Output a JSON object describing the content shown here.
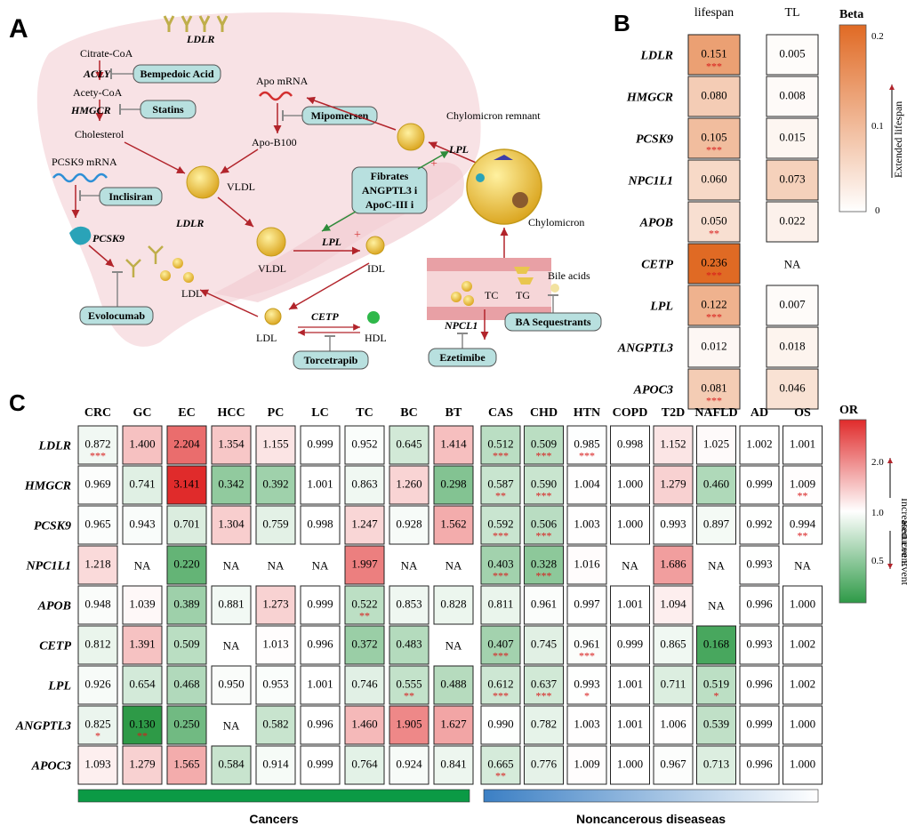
{
  "panel_a": {
    "label": "A",
    "nodes": {
      "ldlr_top": "LDLR",
      "citrate": "Citrate-CoA",
      "acly": "ACLY",
      "bempedoic": "Bempedoic Acid",
      "acety": "Acety-CoA",
      "hmgcr": "HMGCR",
      "statins": "Statins",
      "cholesterol": "Cholesterol",
      "pcsk9_mrna": "PCSK9 mRNA",
      "inclisiran": "Inclisiran",
      "ldlr_mid": "LDLR",
      "pcsk9": "PCSK9",
      "evolocumab": "Evolocumab",
      "ldl_liver": "LDL",
      "apo_mrna": "Apo mRNA",
      "mipomersen": "Mipomersen",
      "apob100": "Apo-B100",
      "vldl_liver": "VLDL",
      "vldl": "VLDL",
      "lpl1": "LPL",
      "idl": "IDL",
      "fibrates1": "Fibrates",
      "fibrates2": "ANGPTL3 i",
      "fibrates3": "ApoC-III i",
      "chylo_remnant": "Chylomicron remnant",
      "lpl2": "LPL",
      "chylomicron": "Chylomicron",
      "ldl": "LDL",
      "cetp": "CETP",
      "hdl": "HDL",
      "torcetrapib": "Torcetrapib",
      "tc": "TC",
      "tg": "TG",
      "bile_acids": "Bile acids",
      "npcl1": "NPCL1",
      "ezetimibe": "Ezetimibe",
      "ba_seq": "BA Sequestrants",
      "plus": "+"
    }
  },
  "panel_b": {
    "label": "B",
    "legend_title": "Beta",
    "legend_ticks": [
      "0.2",
      "0.1",
      "0"
    ],
    "arrow_label": "Extended lifespan"
  },
  "panel_c": {
    "label": "C",
    "legend_title": "OR",
    "legend_ticks": [
      "2.0",
      "1.0",
      "0.5"
    ],
    "arrow_up": "Increased Event",
    "arrow_down": "Reduced Event",
    "group_cancers": "Cancers",
    "group_noncancer": "Noncancerous diseaseas"
  },
  "chart_data": [
    {
      "type": "heatmap",
      "title": "B",
      "legend": "Beta",
      "value_range": [
        0,
        0.236
      ],
      "rows": [
        "LDLR",
        "HMGCR",
        "PCSK9",
        "NPC1L1",
        "APOB",
        "CETP",
        "LPL",
        "ANGPTL3",
        "APOC3"
      ],
      "columns": [
        "lifespan",
        "TL"
      ],
      "values": [
        [
          "0.151",
          "0.005"
        ],
        [
          "0.080",
          "0.008"
        ],
        [
          "0.105",
          "0.015"
        ],
        [
          "0.060",
          "0.073"
        ],
        [
          "0.050",
          "0.022"
        ],
        [
          "0.236",
          "NA"
        ],
        [
          "0.122",
          "0.007"
        ],
        [
          "0.012",
          "0.018"
        ],
        [
          "0.081",
          "0.046"
        ]
      ],
      "stars": [
        [
          "***",
          ""
        ],
        [
          "",
          ""
        ],
        [
          "***",
          ""
        ],
        [
          "",
          ""
        ],
        [
          "**",
          ""
        ],
        [
          "***",
          ""
        ],
        [
          "***",
          ""
        ],
        [
          "",
          ""
        ],
        [
          "***",
          ""
        ]
      ]
    },
    {
      "type": "heatmap",
      "title": "C",
      "legend": "OR",
      "value_range": [
        0.13,
        3.141
      ],
      "rows": [
        "LDLR",
        "HMGCR",
        "PCSK9",
        "NPC1L1",
        "APOB",
        "CETP",
        "LPL",
        "ANGPTL3",
        "APOC3"
      ],
      "columns": [
        "CRC",
        "GC",
        "EC",
        "HCC",
        "PC",
        "LC",
        "TC",
        "BC",
        "BT",
        "CAS",
        "CHD",
        "HTN",
        "COPD",
        "T2D",
        "NAFLD",
        "AD",
        "OS"
      ],
      "values": [
        [
          "0.872",
          "1.400",
          "2.204",
          "1.354",
          "1.155",
          "0.999",
          "0.952",
          "0.645",
          "1.414",
          "0.512",
          "0.509",
          "0.985",
          "0.998",
          "1.152",
          "1.025",
          "1.002",
          "1.001"
        ],
        [
          "0.969",
          "0.741",
          "3.141",
          "0.342",
          "0.392",
          "1.001",
          "0.863",
          "1.260",
          "0.298",
          "0.587",
          "0.590",
          "1.004",
          "1.000",
          "1.279",
          "0.460",
          "0.999",
          "1.009"
        ],
        [
          "0.965",
          "0.943",
          "0.701",
          "1.304",
          "0.759",
          "0.998",
          "1.247",
          "0.928",
          "1.562",
          "0.592",
          "0.506",
          "1.003",
          "1.000",
          "0.993",
          "0.897",
          "0.992",
          "0.994"
        ],
        [
          "1.218",
          "NA",
          "0.220",
          "NA",
          "NA",
          "NA",
          "1.997",
          "NA",
          "NA",
          "0.403",
          "0.328",
          "1.016",
          "NA",
          "1.686",
          "NA",
          "0.993",
          "NA"
        ],
        [
          "0.948",
          "1.039",
          "0.389",
          "0.881",
          "1.273",
          "0.999",
          "0.522",
          "0.853",
          "0.828",
          "0.811",
          "0.961",
          "0.997",
          "1.001",
          "1.094",
          "NA",
          "0.996",
          "1.000"
        ],
        [
          "0.812",
          "1.391",
          "0.509",
          "NA",
          "1.013",
          "0.996",
          "0.372",
          "0.483",
          "NA",
          "0.407",
          "0.745",
          "0.961",
          "0.999",
          "0.865",
          "0.168",
          "0.993",
          "1.002"
        ],
        [
          "0.926",
          "0.654",
          "0.468",
          "0.950",
          "0.953",
          "1.001",
          "0.746",
          "0.555",
          "0.488",
          "0.612",
          "0.637",
          "0.993",
          "1.001",
          "0.711",
          "0.519",
          "0.996",
          "1.002"
        ],
        [
          "0.825",
          "0.130",
          "0.250",
          "NA",
          "0.582",
          "0.996",
          "1.460",
          "1.905",
          "1.627",
          "0.990",
          "0.782",
          "1.003",
          "1.001",
          "1.006",
          "0.539",
          "0.999",
          "1.000"
        ],
        [
          "1.093",
          "1.279",
          "1.565",
          "0.584",
          "0.914",
          "0.999",
          "0.764",
          "0.924",
          "0.841",
          "0.665",
          "0.776",
          "1.009",
          "1.000",
          "0.967",
          "0.713",
          "0.996",
          "1.000"
        ]
      ],
      "stars": [
        [
          "***",
          "",
          "",
          "",
          "",
          "",
          "",
          "",
          "",
          "***",
          "***",
          "***",
          "",
          "",
          "",
          "",
          ""
        ],
        [
          "",
          "",
          "",
          "",
          "",
          "",
          "",
          "",
          "",
          "**",
          "***",
          "",
          "",
          "",
          "",
          "",
          "**"
        ],
        [
          "",
          "",
          "",
          "",
          "",
          "",
          "",
          "",
          "",
          "***",
          "***",
          "",
          "",
          "",
          "",
          "",
          "**"
        ],
        [
          "",
          "",
          "",
          "",
          "",
          "",
          "",
          "",
          "",
          "***",
          "***",
          "",
          "",
          "",
          "",
          "",
          ""
        ],
        [
          "",
          "",
          "",
          "",
          "",
          "",
          "**",
          "",
          "",
          "",
          "",
          "",
          "",
          "",
          "",
          "",
          ""
        ],
        [
          "",
          "",
          "",
          "",
          "",
          "",
          "",
          "",
          "",
          "***",
          "",
          "***",
          "",
          "",
          "",
          "",
          ""
        ],
        [
          "",
          "",
          "",
          "",
          "",
          "",
          "",
          "**",
          "",
          "***",
          "***",
          "*",
          "",
          "",
          "*",
          "",
          ""
        ],
        [
          "*",
          "**",
          "",
          "",
          "",
          "",
          "",
          "",
          "",
          "",
          "",
          "",
          "",
          "",
          "",
          "",
          ""
        ],
        [
          "",
          "",
          "",
          "",
          "",
          "",
          "",
          "",
          "",
          "**",
          "",
          "",
          "",
          "",
          "",
          "",
          ""
        ]
      ]
    }
  ]
}
